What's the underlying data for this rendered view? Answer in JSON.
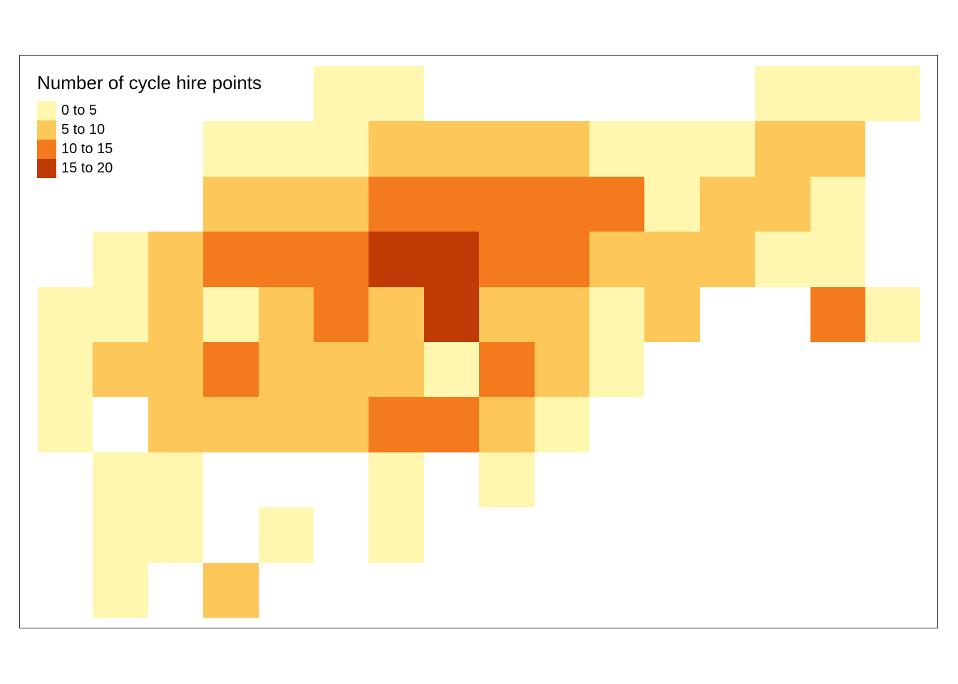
{
  "legend": {
    "title": "Number of cycle hire points",
    "items": [
      {
        "label": "0 to 5",
        "color": "#fff6af"
      },
      {
        "label": "5 to 10",
        "color": "#fec759"
      },
      {
        "label": "10 to 15",
        "color": "#f47a1e"
      },
      {
        "label": "15 to 20",
        "color": "#bf3a05"
      }
    ]
  },
  "grid": {
    "columns": 16,
    "rows": 10,
    "cells": [
      [
        0,
        0,
        0,
        0,
        0,
        1,
        1,
        0,
        0,
        0,
        0,
        0,
        0,
        1,
        1,
        1
      ],
      [
        0,
        0,
        0,
        1,
        1,
        1,
        2,
        2,
        2,
        2,
        1,
        1,
        1,
        2,
        2,
        0
      ],
      [
        0,
        0,
        0,
        2,
        2,
        2,
        3,
        3,
        3,
        3,
        3,
        1,
        2,
        2,
        1,
        0
      ],
      [
        0,
        1,
        2,
        3,
        3,
        3,
        4,
        4,
        3,
        3,
        2,
        2,
        2,
        1,
        1,
        0
      ],
      [
        1,
        1,
        2,
        1,
        2,
        3,
        2,
        4,
        2,
        2,
        1,
        2,
        0,
        0,
        3,
        1
      ],
      [
        1,
        2,
        2,
        3,
        2,
        2,
        2,
        1,
        3,
        2,
        1,
        0,
        0,
        0,
        0,
        0
      ],
      [
        1,
        0,
        2,
        2,
        2,
        2,
        3,
        3,
        2,
        1,
        0,
        0,
        0,
        0,
        0,
        0
      ],
      [
        0,
        1,
        1,
        0,
        0,
        0,
        1,
        0,
        1,
        0,
        0,
        0,
        0,
        0,
        0,
        0
      ],
      [
        0,
        1,
        1,
        0,
        1,
        0,
        1,
        0,
        0,
        0,
        0,
        0,
        0,
        0,
        0,
        0
      ],
      [
        0,
        1,
        0,
        2,
        0,
        0,
        0,
        0,
        0,
        0,
        0,
        0,
        0,
        0,
        0,
        0
      ]
    ]
  }
}
